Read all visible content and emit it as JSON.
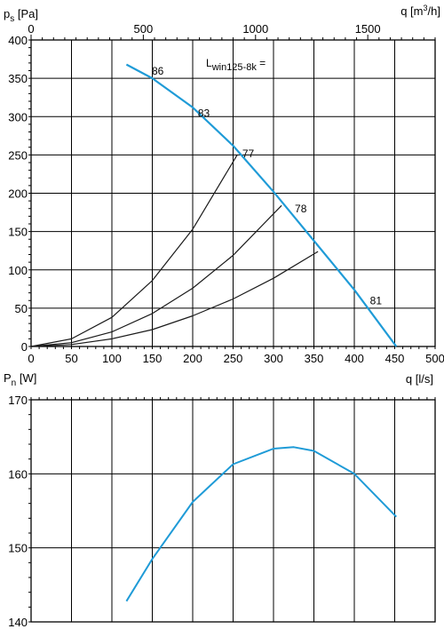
{
  "colors": {
    "fan_curve": "#1f9bd7",
    "system_curve": "#1a1a1a",
    "grid": "#000000"
  },
  "chart_data": [
    {
      "type": "line",
      "ylabel": {
        "main": "p",
        "sub": "s",
        "unit": " [Pa]"
      },
      "xlabel": "q [l/s]",
      "top_axis": {
        "label_main": "q [m",
        "label_sup": "3",
        "label_tail": "/h]",
        "ticks": [
          0,
          500,
          1000,
          1500
        ]
      },
      "annotation": {
        "main": "L",
        "sub": "win125-8k",
        "tail": " ="
      },
      "xlim": [
        0,
        500
      ],
      "ylim": [
        0,
        400
      ],
      "x_ticks": [
        0,
        50,
        100,
        150,
        200,
        250,
        300,
        350,
        400,
        450,
        500
      ],
      "y_ticks": [
        0,
        50,
        100,
        150,
        200,
        250,
        300,
        350,
        400
      ],
      "grid": true,
      "series": [
        {
          "role": "fan-curve",
          "x": [
            118,
            150,
            200,
            250,
            300,
            350,
            400,
            452
          ],
          "y": [
            368,
            350,
            312,
            262,
            202,
            138,
            74,
            0
          ]
        },
        {
          "role": "system-curve-1",
          "x": [
            0,
            50,
            100,
            150,
            200,
            255
          ],
          "y": [
            0,
            10,
            38,
            86,
            153,
            250
          ]
        },
        {
          "role": "system-curve-2",
          "x": [
            0,
            50,
            100,
            150,
            200,
            250,
            310
          ],
          "y": [
            0,
            5,
            19,
            43,
            76,
            119,
            184
          ]
        },
        {
          "role": "system-curve-3",
          "x": [
            0,
            50,
            100,
            150,
            200,
            250,
            300,
            355
          ],
          "y": [
            0,
            2.5,
            10,
            22,
            40,
            62,
            89,
            124
          ]
        }
      ],
      "point_labels": [
        {
          "text": "86",
          "x": 145,
          "y": 355
        },
        {
          "text": "83",
          "x": 202,
          "y": 300
        },
        {
          "text": "77",
          "x": 257,
          "y": 247
        },
        {
          "text": "78",
          "x": 322,
          "y": 175
        },
        {
          "text": "81",
          "x": 415,
          "y": 55
        }
      ]
    },
    {
      "type": "line",
      "ylabel": {
        "main": "P",
        "sub": "n",
        "unit": " [W]"
      },
      "xlim": [
        0,
        500
      ],
      "ylim": [
        140,
        170
      ],
      "y_ticks": [
        140,
        150,
        160,
        170
      ],
      "x_grid": [
        0,
        50,
        100,
        150,
        200,
        250,
        300,
        350,
        400,
        450,
        500
      ],
      "grid": true,
      "series": [
        {
          "role": "power-curve",
          "x": [
            118,
            150,
            200,
            250,
            300,
            325,
            350,
            400,
            452
          ],
          "y": [
            142.8,
            148.5,
            156.2,
            161.3,
            163.4,
            163.6,
            163.1,
            160.0,
            154.2
          ]
        }
      ]
    }
  ]
}
